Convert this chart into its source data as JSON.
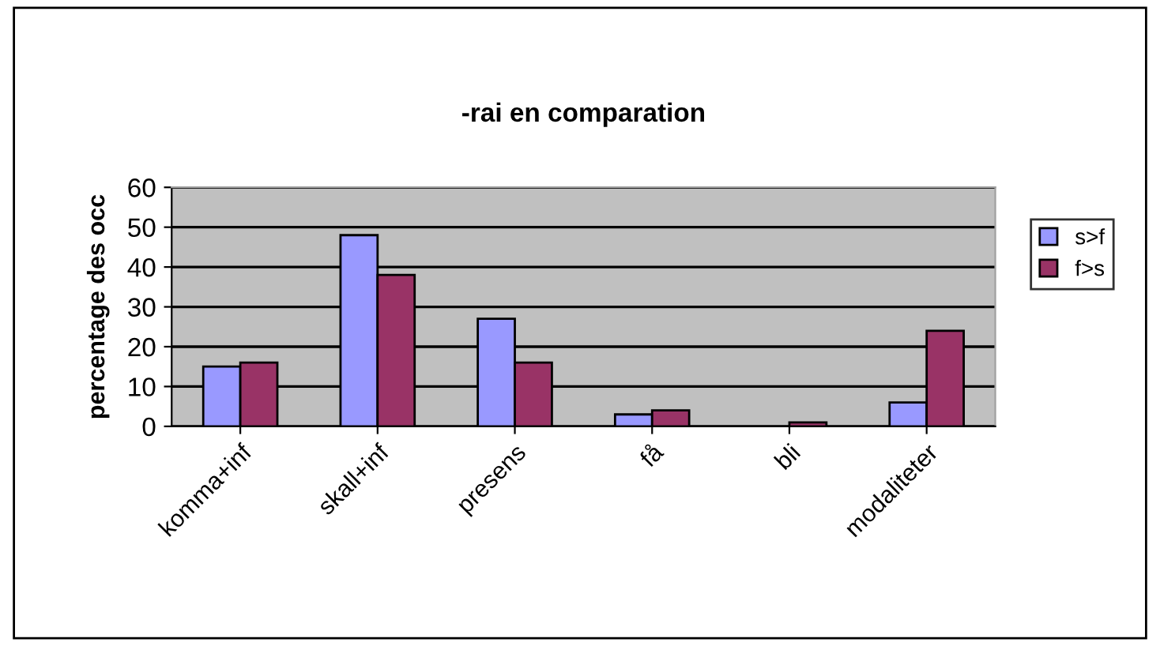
{
  "chart_data": {
    "type": "bar",
    "title": "-rai en comparation",
    "ylabel": "percentage des occ",
    "categories": [
      "komma+inf",
      "skall+inf",
      "presens",
      "få",
      "bli",
      "modaliteter"
    ],
    "series": [
      {
        "name": "s>f",
        "color": "#9999ff",
        "values": [
          15,
          48,
          27,
          3,
          null,
          6
        ]
      },
      {
        "name": "f>s",
        "color": "#993366",
        "values": [
          16,
          38,
          16,
          4,
          1,
          24
        ]
      }
    ],
    "ylim": [
      0,
      60
    ],
    "yticks": [
      0,
      10,
      20,
      30,
      40,
      50,
      60
    ],
    "grid": "y",
    "legend": "right"
  }
}
